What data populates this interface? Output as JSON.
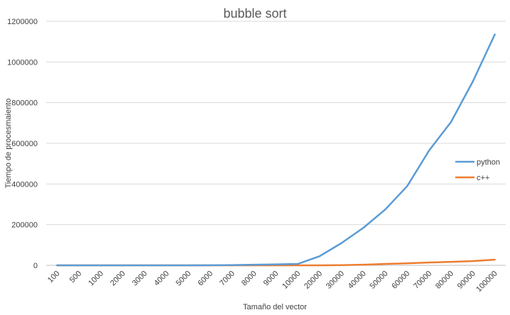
{
  "chart_data": {
    "type": "line",
    "title": "bubble sort",
    "xlabel": "Tamaño del vector",
    "ylabel": "Tiempo de procesmaiento",
    "categories": [
      "100",
      "500",
      "1000",
      "2000",
      "3000",
      "4000",
      "5000",
      "6000",
      "7000",
      "8000",
      "9000",
      "10000",
      "20000",
      "30000",
      "40000",
      "50000",
      "60000",
      "70000",
      "80000",
      "90000",
      "100000"
    ],
    "ylim": [
      0,
      1200000
    ],
    "yticks": [
      "0",
      "200000",
      "400000",
      "600000",
      "800000",
      "1000000",
      "1200000"
    ],
    "grid": true,
    "legend_position": "right",
    "series": [
      {
        "name": "python",
        "color": "#5b9bd5",
        "values": [
          0,
          0,
          0,
          0,
          0,
          0,
          0,
          500,
          1500,
          3000,
          5000,
          7000,
          45000,
          110000,
          185000,
          275000,
          390000,
          565000,
          705000,
          905000,
          1135000
        ]
      },
      {
        "name": "c++",
        "color": "#ed7d31",
        "values": [
          0,
          0,
          0,
          0,
          0,
          0,
          0,
          0,
          0,
          0,
          0,
          0,
          0,
          1000,
          3000,
          7000,
          10000,
          14000,
          17000,
          21000,
          28000
        ]
      }
    ]
  }
}
